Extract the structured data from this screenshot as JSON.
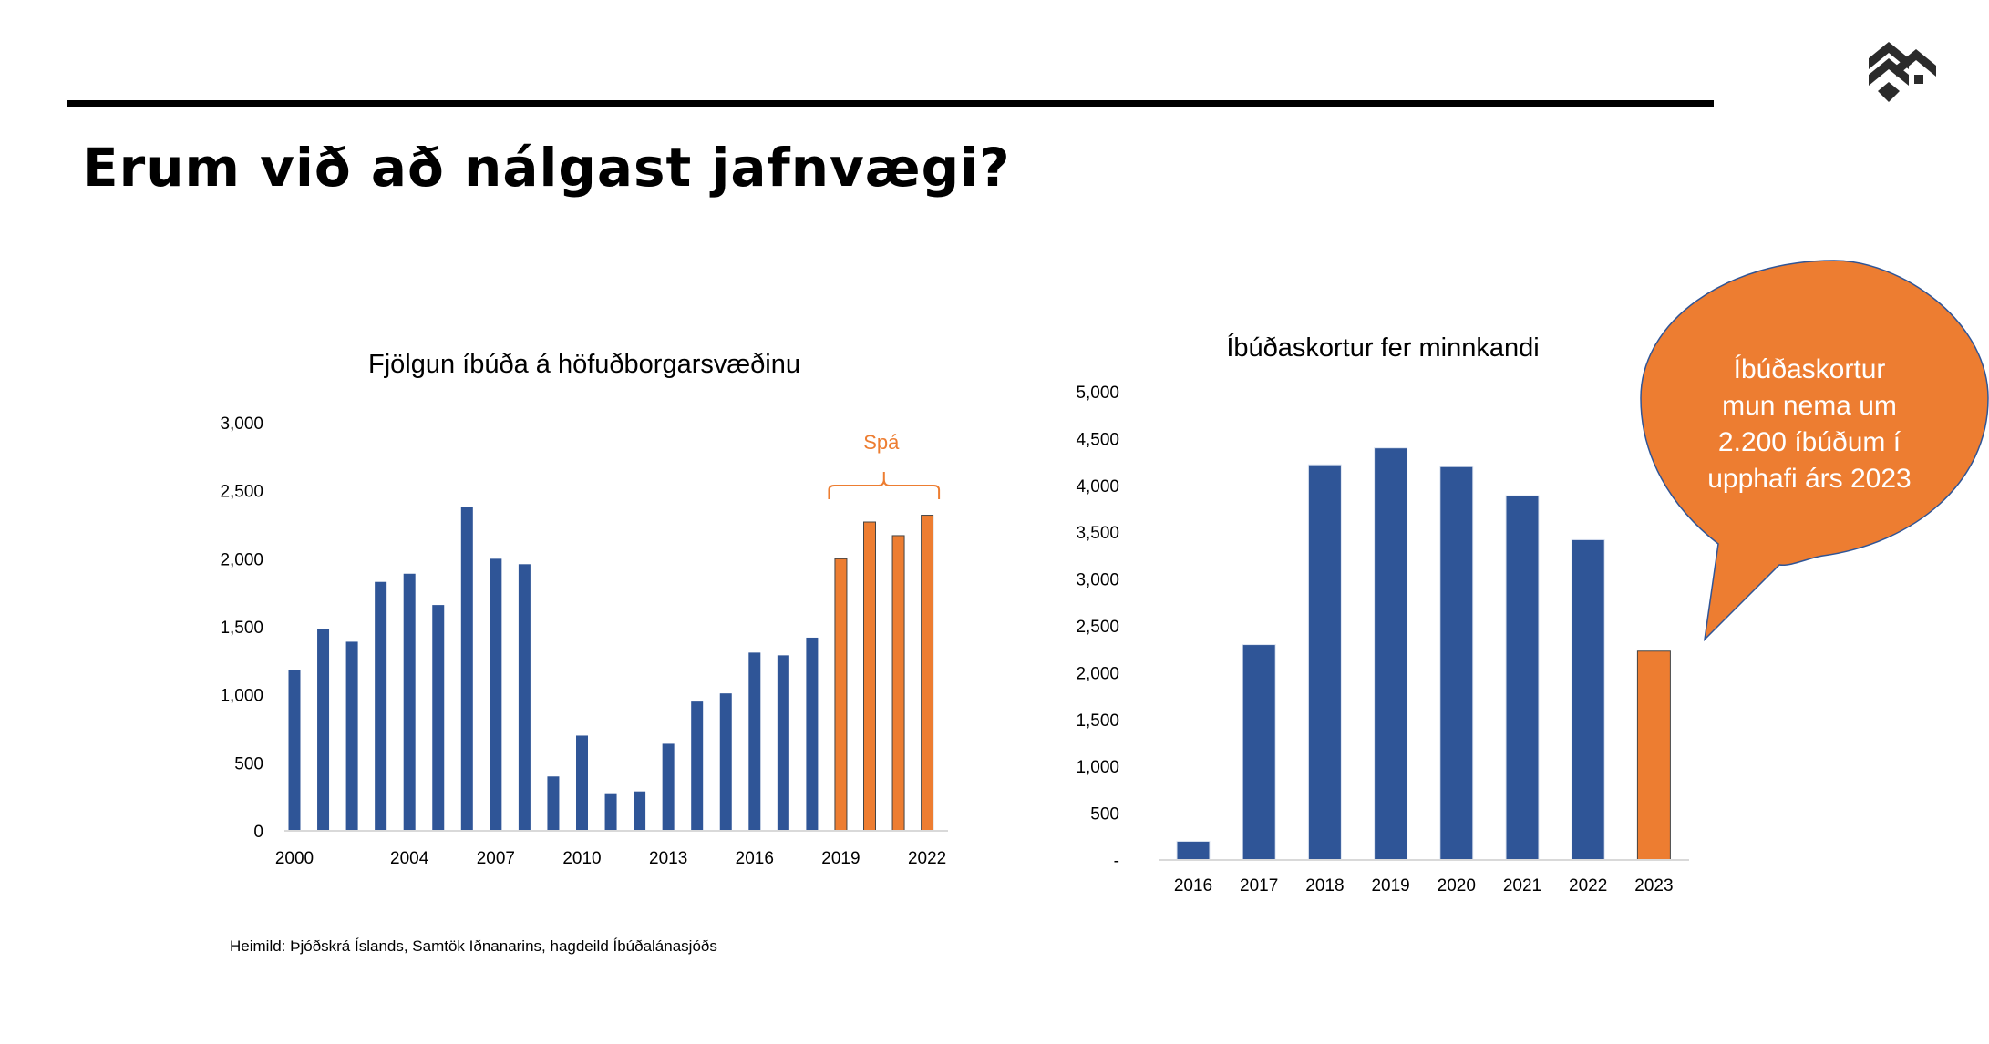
{
  "slide": {
    "title": "Erum við að nálgast jafnvægi?",
    "source": "Heimild: Þjóðskrá Íslands, Samtök Iðnanarins, hagdeild Íbúðalánasjóðs"
  },
  "colors": {
    "blue": "#2F5597",
    "orange": "#ED7D31",
    "text": "#000000"
  },
  "bubble": {
    "lines": [
      "Íbúðaskortur",
      "mun nema um",
      "2.200 íbúðum í",
      "upphafi árs 2023"
    ]
  },
  "chart_data": [
    {
      "type": "bar",
      "title": "Fjölgun íbúða á höfuðborgarsvæðinu",
      "categories": [
        "2000",
        "2001",
        "2002",
        "2003",
        "2004",
        "2005",
        "2006",
        "2007",
        "2008",
        "2009",
        "2010",
        "2011",
        "2012",
        "2013",
        "2014",
        "2015",
        "2016",
        "2017",
        "2018",
        "2019",
        "2020",
        "2021",
        "2022"
      ],
      "values": [
        1180,
        1480,
        1390,
        1830,
        1890,
        1660,
        2380,
        2000,
        1960,
        400,
        700,
        270,
        290,
        640,
        950,
        1010,
        1310,
        1290,
        1420,
        2000,
        2270,
        2170,
        2320
      ],
      "forecast_from_index": 19,
      "x_tick_labels": [
        "2000",
        "2004",
        "2007",
        "2010",
        "2013",
        "2016",
        "2019",
        "2022"
      ],
      "y_tick_labels": [
        "0",
        "500",
        "1,000",
        "1,500",
        "2,000",
        "2,500",
        "3,000"
      ],
      "ylim": [
        0,
        3000
      ],
      "annotation": "Spá"
    },
    {
      "type": "bar",
      "title": "Íbúðaskortur fer minnkandi",
      "categories": [
        "2016",
        "2017",
        "2018",
        "2019",
        "2020",
        "2021",
        "2022",
        "2023"
      ],
      "values": [
        200,
        2300,
        4220,
        4400,
        4200,
        3890,
        3420,
        2230
      ],
      "forecast_from_index": 7,
      "y_tick_labels": [
        "-",
        "500",
        "1,000",
        "1,500",
        "2,000",
        "2,500",
        "3,000",
        "3,500",
        "4,000",
        "4,500",
        "5,000"
      ],
      "ylim": [
        0,
        5000
      ]
    }
  ]
}
